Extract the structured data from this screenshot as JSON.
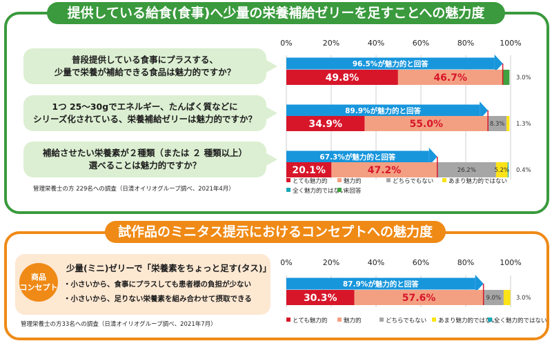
{
  "header": {
    "title1": "提供している給食(食事)へ少量の栄養補給ゼリーを足すことへの魅力度",
    "title2": "試作品のミニタス提示におけるコンセプトへの魅力度"
  },
  "questions": [
    {
      "line1": "普段提供している食事にプラスする、",
      "line2": "少量で栄養が補給できる食品は魅力的ですか？"
    },
    {
      "line1": "1つ 25〜30gでエネルギー、たんぱく質などに",
      "line2": "シリーズ化されている、栄養補給ゼリーは魅力的ですか？"
    },
    {
      "line1": "補給させたい栄養素が２種類（または ２ 種類以上）",
      "line2": "選べることは魅力的ですか？"
    }
  ],
  "notes": {
    "survey1": "管理栄養士の方 229名への調査（日清オイリオグループ調べ、2021年4月）",
    "survey2": "管理栄養士の方33名への調査（日清オイリオグループ調べ、2021年7月）"
  },
  "concept": {
    "badge_line1": "商品",
    "badge_line2": "コンセプト",
    "headline": "少量(ミニ)ゼリーで「栄養素をちょっと足す(タス)」",
    "bullet1": "・小さいから、食事にプラスしても患者様の負担が少ない",
    "bullet2": "・小さいから、足りない栄養素を組み合わせて摂取できる"
  },
  "colors": {
    "very": "#d7162a",
    "somewhat": "#f3a082",
    "neither": "#a6a6a6",
    "notvery": "#fbe317",
    "notatall": "#17a8b8",
    "noanswer": "#3fa13f",
    "arrow": "#1896dc",
    "green": "#3a9a3d",
    "orange": "#ef8a16"
  },
  "chart_data": [
    {
      "type": "bar",
      "orientation": "horizontal",
      "stacked": true,
      "xlim": [
        0,
        100
      ],
      "ticks": [
        "0%",
        "20%",
        "40%",
        "60%",
        "80%",
        "100%"
      ],
      "legend": [
        "とても魅力的",
        "魅力的",
        "どちらでもない",
        "あまり魅力的ではない",
        "全く魅力的ではない",
        "未回答"
      ],
      "legend_position": "bottom",
      "rows": [
        {
          "arrow_label": "96.5%が魅力的と回答",
          "arrow_value": 96.5,
          "values": [
            49.8,
            46.7,
            0,
            0,
            0,
            3.0
          ],
          "labels": [
            "49.8%",
            "46.7%",
            "",
            "",
            "",
            "3.0%"
          ]
        },
        {
          "arrow_label": "89.9%が魅力的と回答",
          "arrow_value": 89.9,
          "values": [
            34.9,
            55.0,
            8.3,
            1.3,
            0,
            0
          ],
          "labels": [
            "34.9%",
            "55.0%",
            "8.3%",
            "1.3%",
            "",
            ""
          ]
        },
        {
          "arrow_label": "67.3%が魅力的と回答",
          "arrow_value": 67.3,
          "values": [
            20.1,
            47.2,
            26.2,
            5.2,
            0.4,
            0
          ],
          "labels": [
            "20.1%",
            "47.2%",
            "26.2%",
            "5.2%",
            "0.4%",
            ""
          ]
        }
      ]
    },
    {
      "type": "bar",
      "orientation": "horizontal",
      "stacked": true,
      "xlim": [
        0,
        100
      ],
      "ticks": [
        "0%",
        "20%",
        "40%",
        "60%",
        "80%",
        "100%"
      ],
      "legend": [
        "とても魅力的",
        "魅力的",
        "どちらでもない",
        "あまり魅力的ではない",
        "全く魅力的ではない"
      ],
      "legend_position": "bottom",
      "rows": [
        {
          "arrow_label": "87.9%が魅力的と回答",
          "arrow_value": 87.9,
          "values": [
            30.3,
            57.6,
            9.0,
            3.0,
            0
          ],
          "labels": [
            "30.3%",
            "57.6%",
            "9.0%",
            "3.0%",
            ""
          ]
        }
      ]
    }
  ]
}
